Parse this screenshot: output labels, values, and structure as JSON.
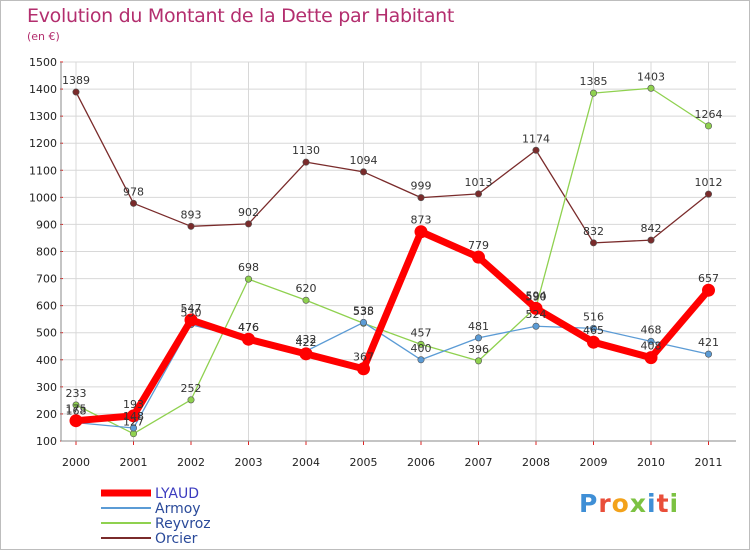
{
  "chart_data": {
    "type": "line",
    "title": "Evolution du Montant de la Dette par Habitant",
    "subtitle": "(en €)",
    "categories": [
      "2000",
      "2001",
      "2002",
      "2003",
      "2004",
      "2005",
      "2006",
      "2007",
      "2008",
      "2009",
      "2010",
      "2011"
    ],
    "ylim": [
      100,
      1500
    ],
    "yticks": [
      100,
      200,
      300,
      400,
      500,
      600,
      700,
      800,
      900,
      1000,
      1100,
      1200,
      1300,
      1400,
      1500
    ],
    "grid": true,
    "legend_position": "bottom-left",
    "series": [
      {
        "name": "LYAUD",
        "color": "#ff0000",
        "values": [
          175,
          193,
          547,
          476,
          422,
          367,
          873,
          779,
          590,
          465,
          408,
          657
        ]
      },
      {
        "name": "Armoy",
        "color": "#5b9bd5",
        "values": [
          168,
          148,
          530,
          476,
          432,
          538,
          400,
          481,
          524,
          516,
          468,
          421
        ]
      },
      {
        "name": "Reyvroz",
        "color": "#8fd14f",
        "values": [
          233,
          127,
          252,
          698,
          620,
          535,
          457,
          396,
          594,
          1385,
          1403,
          1264
        ]
      },
      {
        "name": "Orcier",
        "color": "#7a2b2b",
        "values": [
          1389,
          978,
          893,
          902,
          1130,
          1094,
          999,
          1013,
          1174,
          832,
          842,
          1012
        ]
      }
    ]
  },
  "logo": {
    "letters": [
      {
        "ch": "P",
        "color": "#3f8fd6"
      },
      {
        "ch": "r",
        "color": "#e94e3a"
      },
      {
        "ch": "o",
        "color": "#f3a21b"
      },
      {
        "ch": "x",
        "color": "#7cc242"
      },
      {
        "ch": "i",
        "color": "#3f8fd6"
      },
      {
        "ch": "t",
        "color": "#e94e3a"
      },
      {
        "ch": "i",
        "color": "#7cc242"
      }
    ]
  }
}
